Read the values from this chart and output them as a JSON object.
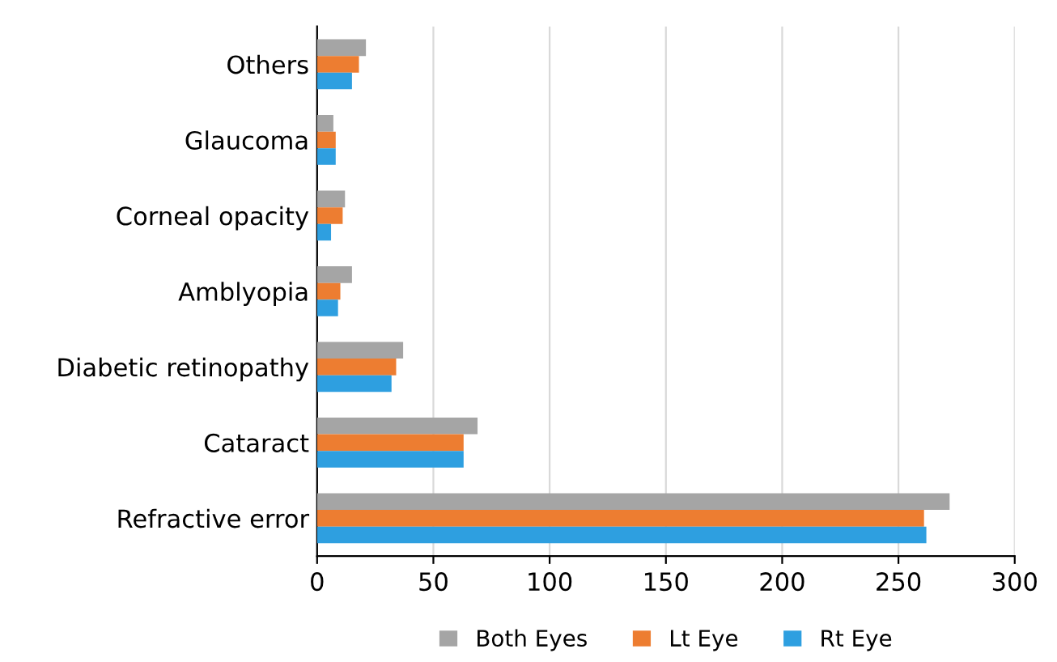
{
  "chart_data": {
    "type": "bar",
    "orientation": "horizontal",
    "categories": [
      "Others",
      "Glaucoma",
      "Corneal opacity",
      "Amblyopia",
      "Diabetic retinopathy",
      "Cataract",
      "Refractive error"
    ],
    "series": [
      {
        "name": "Both Eyes",
        "color": "#a5a5a5",
        "values": [
          21,
          7,
          12,
          15,
          37,
          69,
          272
        ]
      },
      {
        "name": "Lt Eye",
        "color": "#ed7d31",
        "values": [
          18,
          8,
          11,
          10,
          34,
          63,
          261
        ]
      },
      {
        "name": "Rt Eye",
        "color": "#2e9fe0",
        "values": [
          15,
          8,
          6,
          9,
          32,
          63,
          262
        ]
      }
    ],
    "xlim": [
      0,
      300
    ],
    "xticks": [
      0,
      50,
      100,
      150,
      200,
      250,
      300
    ],
    "grid": "x",
    "legend": "bottom"
  }
}
